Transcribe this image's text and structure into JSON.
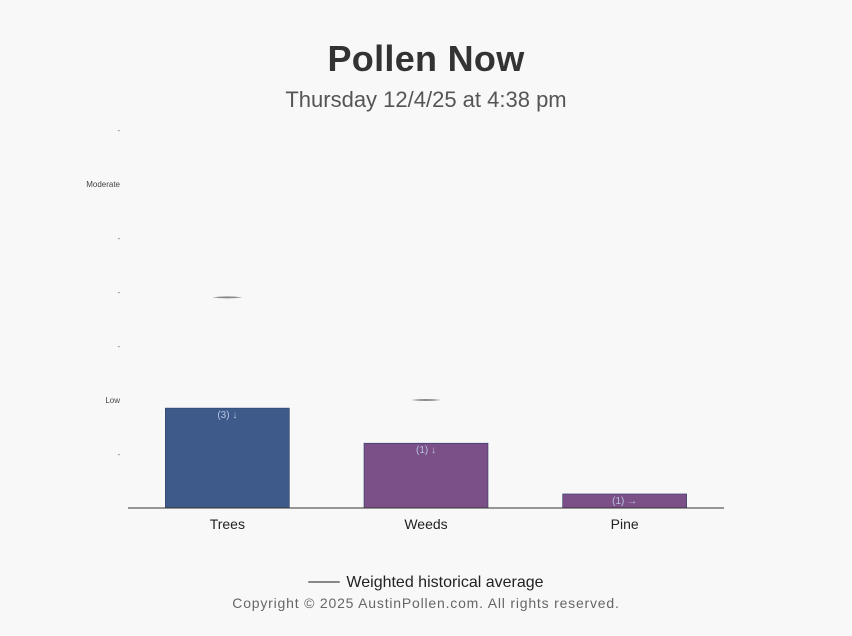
{
  "title": "Pollen Now",
  "subtitle": "Thursday 12/4/25 at 4:38 pm",
  "chart_data": {
    "type": "bar",
    "categories": [
      "Trees",
      "Weeds",
      "Pine"
    ],
    "values": [
      1.85,
      1.2,
      0.26
    ],
    "bar_labels": [
      "(3) ↓",
      "(1) ↓",
      "(1) →"
    ],
    "bar_colors": [
      "#3d5a8a",
      "#7b4f88",
      "#7b4f88"
    ],
    "historical_average": [
      3.9,
      2.0,
      null
    ],
    "y_ticks": [
      {
        "value": 1,
        "label": "-"
      },
      {
        "value": 2,
        "label": "Low"
      },
      {
        "value": 3,
        "label": "-"
      },
      {
        "value": 4,
        "label": "-"
      },
      {
        "value": 5,
        "label": "-"
      },
      {
        "value": 6,
        "label": "Moderate"
      },
      {
        "value": 7,
        "label": "-"
      }
    ],
    "ylim": [
      0,
      7
    ],
    "grid": false,
    "legend": {
      "label": "Weighted historical average",
      "position": "bottom"
    }
  },
  "footer": {
    "copyright": "Copyright © 2025 AustinPollen.com.  All rights reserved."
  }
}
